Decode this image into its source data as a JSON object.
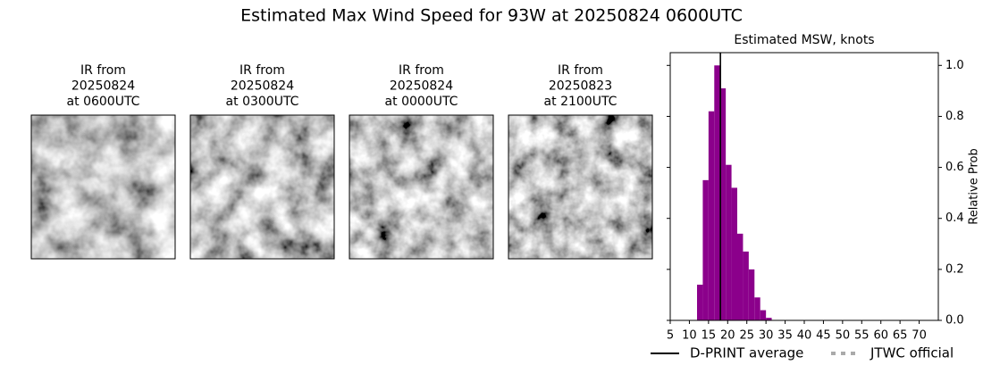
{
  "title": "Estimated Max Wind Speed for 93W at 20250824 0600UTC",
  "panels": [
    {
      "title": [
        "IR from",
        "20250824",
        "at 0600UTC"
      ]
    },
    {
      "title": [
        "IR from",
        "20250824",
        "at 0300UTC"
      ]
    },
    {
      "title": [
        "IR from",
        "20250824",
        "at 0000UTC"
      ]
    },
    {
      "title": [
        "IR from",
        "20250823",
        "at 2100UTC"
      ]
    }
  ],
  "chart_data": {
    "type": "histogram",
    "title": "Estimated MSW, knots",
    "ylabel": "Relative Prob",
    "bins": [
      12,
      13.5,
      15,
      16.5,
      18,
      19.5,
      21,
      22.5,
      24,
      25.5,
      27,
      28.5,
      30,
      31.5
    ],
    "values": [
      0.14,
      0.55,
      0.82,
      1.0,
      0.91,
      0.61,
      0.52,
      0.34,
      0.27,
      0.2,
      0.09,
      0.04,
      0.01
    ],
    "color": "#8b008b",
    "xlim": [
      5,
      75
    ],
    "ylim": [
      0,
      1.05
    ],
    "xticks": [
      5,
      10,
      15,
      20,
      25,
      30,
      35,
      40,
      45,
      50,
      55,
      60,
      65,
      70
    ],
    "yticks": [
      {
        "value": 0,
        "label": "0.0"
      },
      {
        "value": 0.2,
        "label": "0.2"
      },
      {
        "value": 0.4,
        "label": "0.4"
      },
      {
        "value": 0.6,
        "label": "0.6"
      },
      {
        "value": 0.8,
        "label": "0.8"
      },
      {
        "value": 1.0,
        "label": "1.0"
      }
    ],
    "lines": [
      {
        "name": "D-PRINT average",
        "color": "#000000",
        "style": "solid",
        "x": 18.1
      },
      {
        "name": "JTWC official",
        "color": "#aaaaaa",
        "style": "dotted"
      }
    ]
  }
}
